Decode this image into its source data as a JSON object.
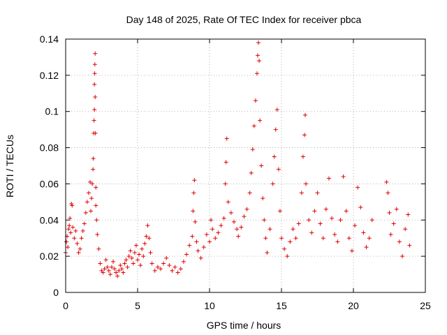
{
  "chart_data": {
    "type": "scatter",
    "title": "Day 148 of 2025, Rate Of TEC Index for receiver pbca",
    "xlabel": "GPS time / hours",
    "ylabel": "ROTI / TECUs",
    "xlim": [
      0,
      25
    ],
    "ylim": [
      0,
      0.14
    ],
    "xticks": [
      0,
      5,
      10,
      15,
      20,
      25
    ],
    "xtick_labels": [
      "0",
      "5",
      "10",
      "15",
      "20",
      "25"
    ],
    "yticks": [
      0,
      0.02,
      0.04,
      0.06,
      0.08,
      0.1,
      0.12,
      0.14
    ],
    "ytick_labels": [
      "0",
      "0.02",
      "0.04",
      "0.06",
      "0.08",
      "0.1",
      "0.12",
      "0.14"
    ],
    "grid": true,
    "marker": "plus",
    "marker_color": "#e00000",
    "series": [
      {
        "points": [
          [
            0.0,
            0.022
          ],
          [
            0.05,
            0.028
          ],
          [
            0.1,
            0.031
          ],
          [
            0.15,
            0.025
          ],
          [
            0.2,
            0.035
          ],
          [
            0.25,
            0.037
          ],
          [
            0.3,
            0.041
          ],
          [
            0.35,
            0.033
          ],
          [
            0.4,
            0.049
          ],
          [
            0.45,
            0.048
          ],
          [
            0.5,
            0.036
          ],
          [
            0.6,
            0.03
          ],
          [
            0.7,
            0.034
          ],
          [
            0.8,
            0.027
          ],
          [
            0.9,
            0.022
          ],
          [
            1.0,
            0.024
          ],
          [
            1.1,
            0.03
          ],
          [
            1.2,
            0.034
          ],
          [
            1.3,
            0.038
          ],
          [
            1.4,
            0.044
          ],
          [
            1.5,
            0.05
          ],
          [
            1.6,
            0.055
          ],
          [
            1.7,
            0.061
          ],
          [
            1.75,
            0.045
          ],
          [
            1.8,
            0.052
          ],
          [
            1.85,
            0.06
          ],
          [
            1.9,
            0.068
          ],
          [
            1.92,
            0.074
          ],
          [
            1.95,
            0.088
          ],
          [
            1.97,
            0.095
          ],
          [
            2.0,
            0.101
          ],
          [
            2.0,
            0.115
          ],
          [
            2.02,
            0.121
          ],
          [
            2.03,
            0.126
          ],
          [
            2.05,
            0.132
          ],
          [
            2.05,
            0.108
          ],
          [
            2.07,
            0.088
          ],
          [
            2.1,
            0.058
          ],
          [
            2.1,
            0.048
          ],
          [
            2.15,
            0.04
          ],
          [
            2.2,
            0.032
          ],
          [
            2.3,
            0.024
          ],
          [
            2.4,
            0.016
          ],
          [
            2.5,
            0.012
          ],
          [
            2.6,
            0.011
          ],
          [
            2.7,
            0.013
          ],
          [
            2.8,
            0.018
          ],
          [
            2.9,
            0.014
          ],
          [
            3.0,
            0.012
          ],
          [
            3.1,
            0.01
          ],
          [
            3.2,
            0.014
          ],
          [
            3.3,
            0.017
          ],
          [
            3.4,
            0.013
          ],
          [
            3.5,
            0.011
          ],
          [
            3.6,
            0.009
          ],
          [
            3.7,
            0.012
          ],
          [
            3.8,
            0.015
          ],
          [
            3.9,
            0.013
          ],
          [
            4.0,
            0.011
          ],
          [
            4.1,
            0.016
          ],
          [
            4.2,
            0.018
          ],
          [
            4.3,
            0.014
          ],
          [
            4.4,
            0.02
          ],
          [
            4.5,
            0.023
          ],
          [
            4.6,
            0.019
          ],
          [
            4.7,
            0.016
          ],
          [
            4.8,
            0.022
          ],
          [
            4.9,
            0.026
          ],
          [
            5.0,
            0.018
          ],
          [
            5.1,
            0.021
          ],
          [
            5.2,
            0.015
          ],
          [
            5.3,
            0.024
          ],
          [
            5.4,
            0.02
          ],
          [
            5.5,
            0.027
          ],
          [
            5.6,
            0.031
          ],
          [
            5.7,
            0.037
          ],
          [
            5.8,
            0.03
          ],
          [
            5.9,
            0.022
          ],
          [
            6.0,
            0.016
          ],
          [
            6.2,
            0.012
          ],
          [
            6.4,
            0.014
          ],
          [
            6.6,
            0.013
          ],
          [
            6.8,
            0.016
          ],
          [
            7.0,
            0.019
          ],
          [
            7.2,
            0.015
          ],
          [
            7.4,
            0.012
          ],
          [
            7.6,
            0.014
          ],
          [
            7.8,
            0.011
          ],
          [
            8.0,
            0.013
          ],
          [
            8.2,
            0.017
          ],
          [
            8.4,
            0.021
          ],
          [
            8.6,
            0.026
          ],
          [
            8.8,
            0.031
          ],
          [
            8.85,
            0.045
          ],
          [
            8.9,
            0.055
          ],
          [
            8.95,
            0.062
          ],
          [
            9.0,
            0.039
          ],
          [
            9.1,
            0.028
          ],
          [
            9.2,
            0.023
          ],
          [
            9.4,
            0.019
          ],
          [
            9.6,
            0.025
          ],
          [
            9.8,
            0.032
          ],
          [
            10.0,
            0.028
          ],
          [
            10.1,
            0.04
          ],
          [
            10.2,
            0.035
          ],
          [
            10.4,
            0.03
          ],
          [
            10.6,
            0.033
          ],
          [
            10.8,
            0.037
          ],
          [
            11.0,
            0.041
          ],
          [
            11.1,
            0.06
          ],
          [
            11.15,
            0.072
          ],
          [
            11.2,
            0.085
          ],
          [
            11.3,
            0.05
          ],
          [
            11.5,
            0.044
          ],
          [
            11.7,
            0.039
          ],
          [
            11.9,
            0.035
          ],
          [
            12.0,
            0.031
          ],
          [
            12.2,
            0.036
          ],
          [
            12.4,
            0.042
          ],
          [
            12.6,
            0.046
          ],
          [
            12.8,
            0.055
          ],
          [
            12.9,
            0.066
          ],
          [
            13.0,
            0.079
          ],
          [
            13.1,
            0.092
          ],
          [
            13.2,
            0.106
          ],
          [
            13.3,
            0.121
          ],
          [
            13.35,
            0.131
          ],
          [
            13.4,
            0.138
          ],
          [
            13.45,
            0.128
          ],
          [
            13.5,
            0.095
          ],
          [
            13.6,
            0.07
          ],
          [
            13.7,
            0.052
          ],
          [
            13.8,
            0.04
          ],
          [
            13.9,
            0.03
          ],
          [
            14.0,
            0.022
          ],
          [
            14.2,
            0.035
          ],
          [
            14.4,
            0.06
          ],
          [
            14.5,
            0.075
          ],
          [
            14.6,
            0.09
          ],
          [
            14.7,
            0.101
          ],
          [
            14.8,
            0.068
          ],
          [
            14.9,
            0.045
          ],
          [
            15.0,
            0.03
          ],
          [
            15.2,
            0.024
          ],
          [
            15.4,
            0.02
          ],
          [
            15.6,
            0.028
          ],
          [
            15.8,
            0.035
          ],
          [
            16.0,
            0.03
          ],
          [
            16.2,
            0.038
          ],
          [
            16.4,
            0.055
          ],
          [
            16.5,
            0.075
          ],
          [
            16.6,
            0.087
          ],
          [
            16.65,
            0.098
          ],
          [
            16.7,
            0.06
          ],
          [
            16.9,
            0.04
          ],
          [
            17.1,
            0.033
          ],
          [
            17.3,
            0.045
          ],
          [
            17.5,
            0.055
          ],
          [
            17.7,
            0.038
          ],
          [
            17.9,
            0.03
          ],
          [
            18.1,
            0.046
          ],
          [
            18.3,
            0.063
          ],
          [
            18.5,
            0.041
          ],
          [
            18.7,
            0.032
          ],
          [
            18.9,
            0.028
          ],
          [
            19.1,
            0.04
          ],
          [
            19.3,
            0.064
          ],
          [
            19.5,
            0.045
          ],
          [
            19.7,
            0.03
          ],
          [
            19.9,
            0.023
          ],
          [
            20.1,
            0.037
          ],
          [
            20.3,
            0.058
          ],
          [
            20.5,
            0.047
          ],
          [
            20.7,
            0.033
          ],
          [
            20.9,
            0.025
          ],
          [
            21.1,
            0.03
          ],
          [
            21.3,
            0.04
          ],
          [
            22.3,
            0.061
          ],
          [
            22.4,
            0.055
          ],
          [
            22.5,
            0.044
          ],
          [
            22.6,
            0.032
          ],
          [
            22.8,
            0.038
          ],
          [
            23.0,
            0.046
          ],
          [
            23.2,
            0.028
          ],
          [
            23.4,
            0.02
          ],
          [
            23.6,
            0.035
          ],
          [
            23.8,
            0.043
          ],
          [
            23.9,
            0.026
          ]
        ]
      }
    ]
  }
}
